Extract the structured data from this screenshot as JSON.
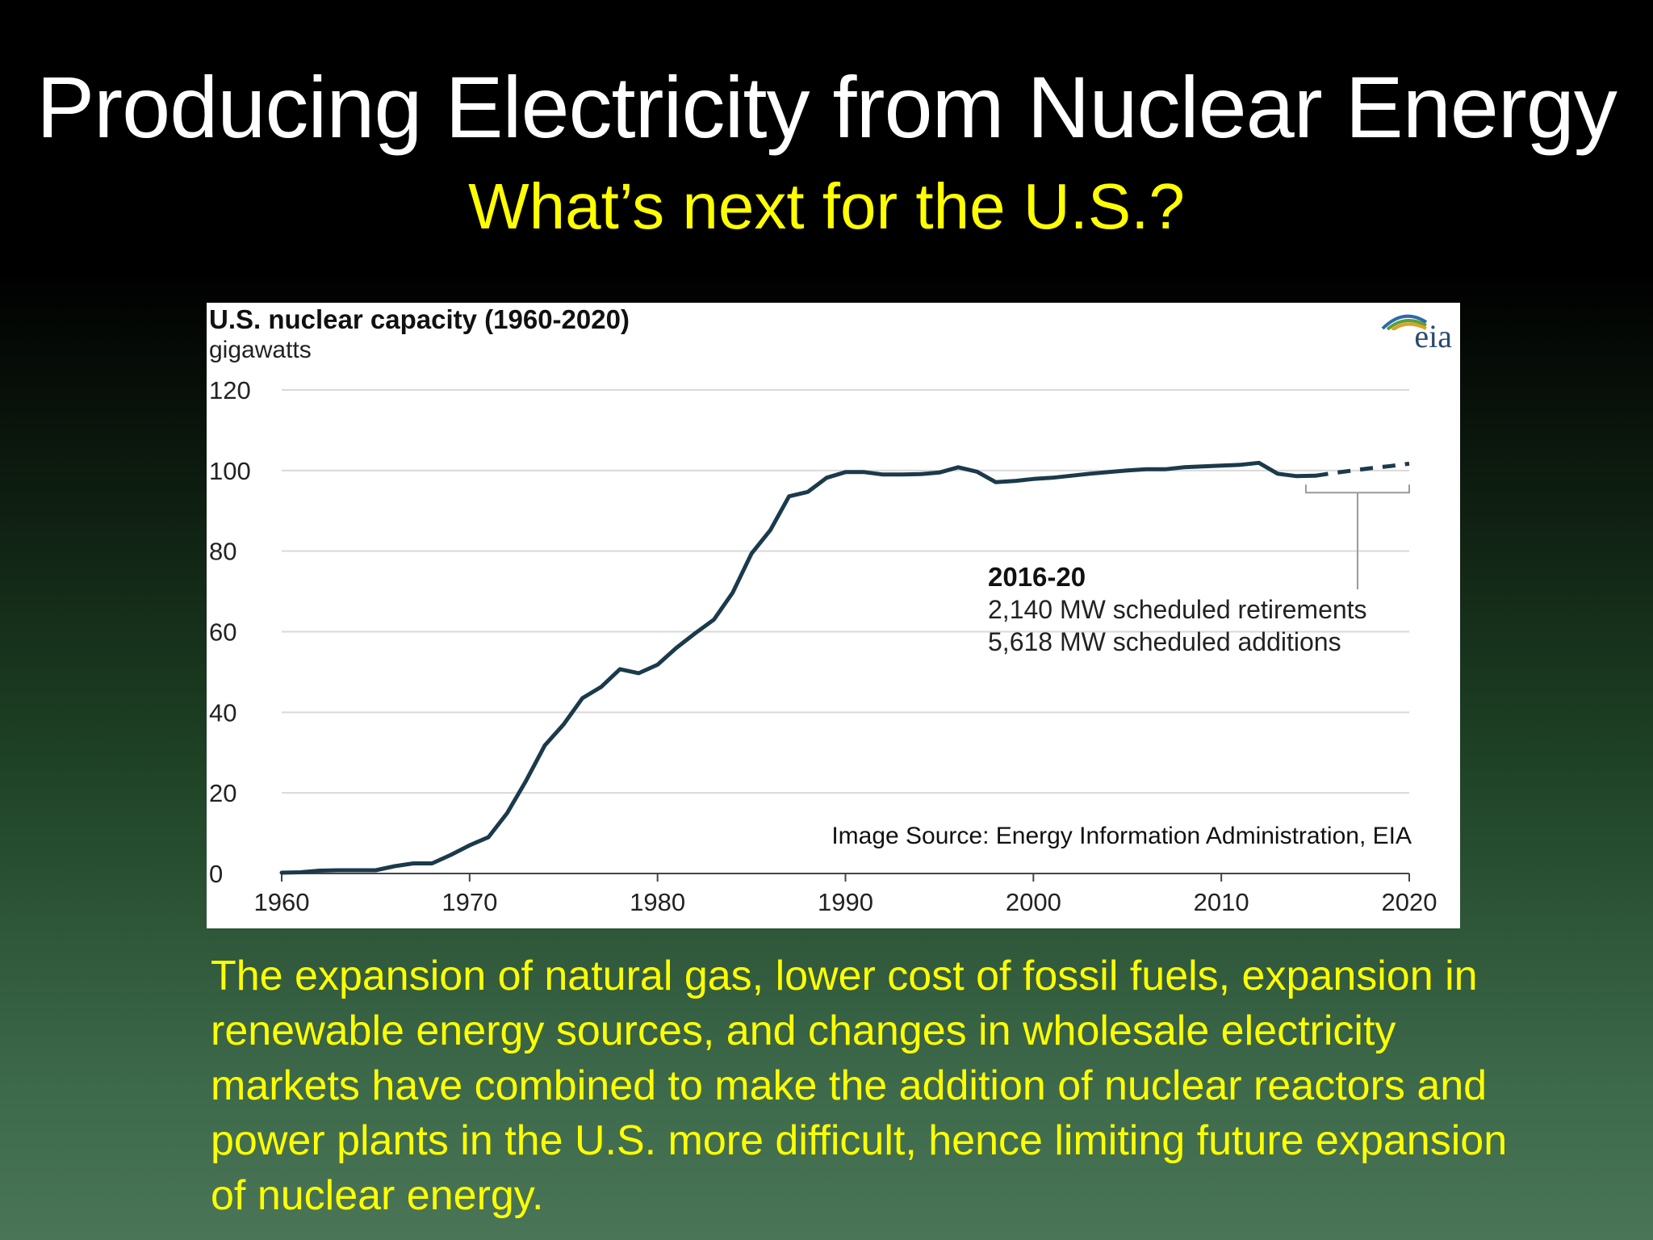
{
  "slide": {
    "title": "Producing Electricity from Nuclear Energy",
    "subtitle": "What’s next for the U.S.?",
    "body": "The expansion of natural gas, lower cost of fossil fuels, expansion in renewable energy sources, and changes in wholesale electricity markets have combined to make the addition of nuclear reactors and power plants in the U.S. more difficult, hence limiting future expansion of nuclear energy."
  },
  "colors": {
    "title": "#ffffff",
    "subtitle": "#ffff00",
    "body_text": "#ffff00",
    "line": "#1b3a4b",
    "gridline": "#d9d9d9",
    "axis": "#444444",
    "bracket": "#9a9a9a"
  },
  "logo": {
    "text": "eia"
  },
  "chart_data": {
    "type": "line",
    "title": "U.S. nuclear capacity (1960-2020)",
    "ylabel": "gigawatts",
    "xlabel": "",
    "xlim": [
      1960,
      2020
    ],
    "ylim": [
      0,
      120
    ],
    "x_ticks": [
      "1960",
      "1970",
      "1980",
      "1990",
      "2000",
      "2010",
      "2020"
    ],
    "y_ticks": [
      "120",
      "100",
      "80",
      "60",
      "40",
      "20",
      "0"
    ],
    "grid": true,
    "series": [
      {
        "style": "solid",
        "x": [
          1960,
          1961,
          1962,
          1963,
          1964,
          1965,
          1966,
          1967,
          1968,
          1969,
          1970,
          1971,
          1972,
          1973,
          1974,
          1975,
          1976,
          1977,
          1978,
          1979,
          1980,
          1981,
          1982,
          1983,
          1984,
          1985,
          1986,
          1987,
          1988,
          1989,
          1990,
          1991,
          1992,
          1993,
          1994,
          1995,
          1996,
          1997,
          1998,
          1999,
          2000,
          2001,
          2002,
          2003,
          2004,
          2005,
          2006,
          2007,
          2008,
          2009,
          2010,
          2011,
          2012,
          2013,
          2014,
          2015
        ],
        "y": [
          0.2,
          0.3,
          0.7,
          0.8,
          0.8,
          0.8,
          1.8,
          2.5,
          2.5,
          4.6,
          7.0,
          9.0,
          15.0,
          23.0,
          31.8,
          37.0,
          43.5,
          46.3,
          50.7,
          49.7,
          51.8,
          56.0,
          59.6,
          63.0,
          69.7,
          79.4,
          85.2,
          93.6,
          94.7,
          98.2,
          99.6,
          99.6,
          99.0,
          99.0,
          99.1,
          99.5,
          100.8,
          99.7,
          97.1,
          97.4,
          97.9,
          98.2,
          98.7,
          99.2,
          99.6,
          100.0,
          100.3,
          100.3,
          100.8,
          101.0,
          101.2,
          101.4,
          101.9,
          99.2,
          98.6,
          98.7
        ]
      },
      {
        "style": "dashed",
        "x": [
          2015,
          2016,
          2017,
          2018,
          2019,
          2020
        ],
        "y": [
          98.7,
          99.4,
          100.0,
          100.6,
          101.1,
          101.7
        ]
      }
    ],
    "annotation": {
      "period": "2016-20",
      "lines": [
        "2,140 MW scheduled retirements",
        "5,618 MW scheduled additions"
      ],
      "bracket_x": [
        2014.5,
        2020
      ]
    },
    "source_note": "Image Source:  Energy Information Administration, EIA"
  }
}
